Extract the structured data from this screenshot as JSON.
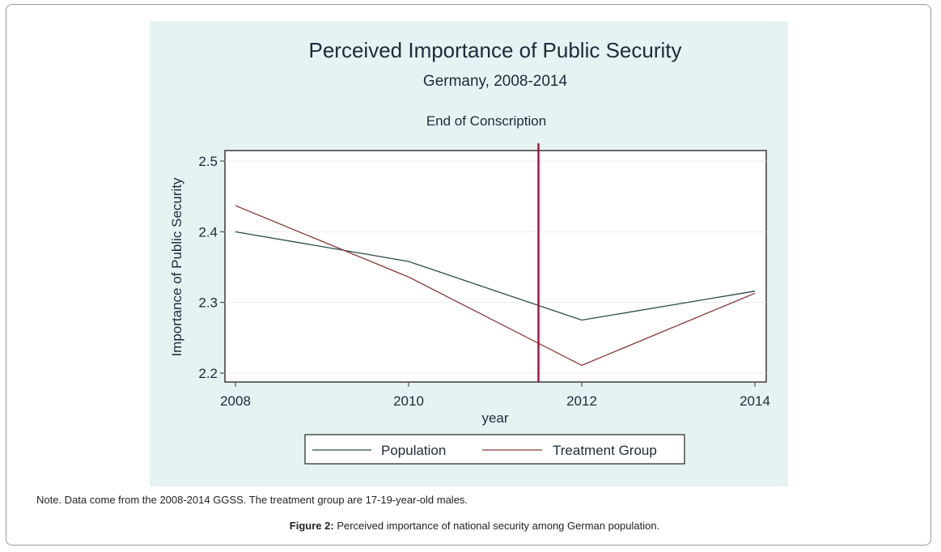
{
  "chart_data": {
    "type": "line",
    "title": "Perceived Importance of Public Security",
    "subtitle": "Germany, 2008-2014",
    "xlabel": "year",
    "ylabel": "Importance of Public Security",
    "x": [
      2008,
      2010,
      2012,
      2014
    ],
    "xlim": [
      2007.9,
      2014.13
    ],
    "ylim": [
      2.185,
      2.515
    ],
    "xticks": [
      2008,
      2010,
      2012,
      2014
    ],
    "xtick_labels": [
      "2008",
      "2010",
      "2012",
      "2014"
    ],
    "yticks": [
      2.2,
      2.3,
      2.4,
      2.5
    ],
    "ytick_labels": [
      "2.2",
      "2.3",
      "2.4",
      "2.5"
    ],
    "grid": true,
    "series": [
      {
        "name": "Population",
        "color": "#2a4a4a",
        "values": [
          2.4,
          2.358,
          2.275,
          2.316
        ]
      },
      {
        "name": "Treatment Group",
        "color": "#8a3a3a",
        "values": [
          2.437,
          2.336,
          2.211,
          2.313
        ]
      }
    ],
    "annotations": [
      {
        "type": "vline",
        "x": 2011.5,
        "label": "End of Conscription",
        "color": "#a0103a"
      }
    ],
    "legend": {
      "position": "bottom",
      "entries": [
        "Population",
        "Treatment Group"
      ]
    }
  },
  "note": "Note. Data come from the 2008-2014 GGSS. The treatment group are 17-19-year-old males.",
  "caption": {
    "label": "Figure 2:",
    "text": " Perceived importance of national security among German population."
  }
}
